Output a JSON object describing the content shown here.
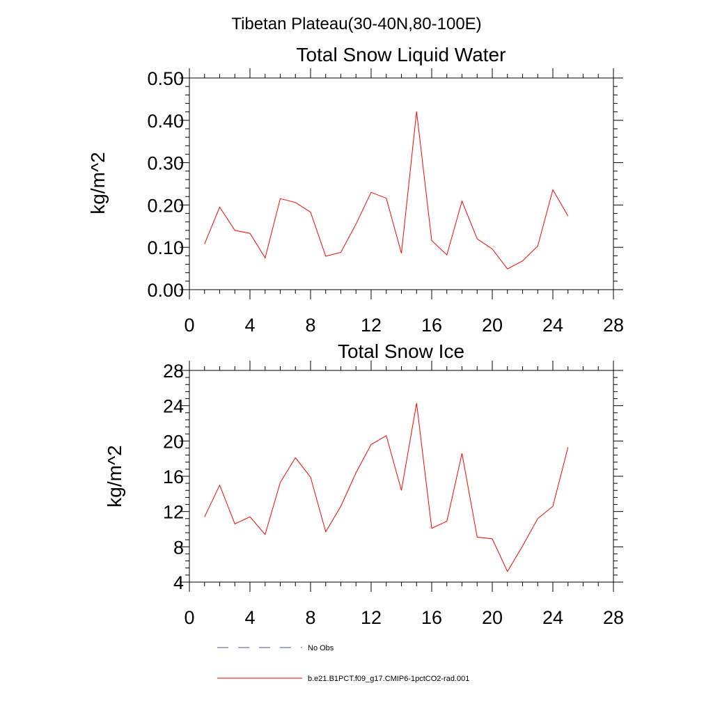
{
  "figure": {
    "main_title": "Tibetan Plateau(30-40N,80-100E)"
  },
  "colors": {
    "series": "#ff0000",
    "obs": "#4a5a8a",
    "axis": "#000000"
  },
  "legend": {
    "items": [
      {
        "label": "No Obs",
        "style": "dashed",
        "color": "#4a5a8a"
      },
      {
        "label": "b.e21.B1PCT.f09_g17.CMIP6-1pctCO2-rad.001",
        "style": "solid",
        "color": "#ff0000"
      }
    ]
  },
  "chart_data": [
    {
      "type": "line",
      "title": "Total Snow Liquid Water",
      "xlabel": "",
      "ylabel": "kg/m^2",
      "xlim": [
        0,
        28
      ],
      "ylim": [
        0,
        0.5
      ],
      "x_ticks": [
        "0",
        "4",
        "8",
        "12",
        "16",
        "20",
        "24",
        "28"
      ],
      "y_ticks": [
        "0.00",
        "0.10",
        "0.20",
        "0.30",
        "0.40",
        "0.50"
      ],
      "grid": false,
      "series": [
        {
          "name": "b.e21.B1PCT.f09_g17.CMIP6-1pctCO2-rad.001",
          "color": "#ff0000",
          "x": [
            1,
            2,
            3,
            4,
            5,
            6,
            7,
            8,
            9,
            10,
            11,
            12,
            13,
            14,
            15,
            16,
            17,
            18,
            19,
            20,
            21,
            22,
            23,
            24,
            25
          ],
          "values": [
            0.108,
            0.195,
            0.14,
            0.133,
            0.075,
            0.215,
            0.206,
            0.183,
            0.079,
            0.088,
            0.155,
            0.23,
            0.216,
            0.086,
            0.421,
            0.116,
            0.082,
            0.209,
            0.12,
            0.096,
            0.049,
            0.068,
            0.103,
            0.236,
            0.174
          ]
        }
      ]
    },
    {
      "type": "line",
      "title": "Total Snow Ice",
      "xlabel": "",
      "ylabel": "kg/m^2",
      "xlim": [
        0,
        28
      ],
      "ylim": [
        4,
        28
      ],
      "x_ticks": [
        "0",
        "4",
        "8",
        "12",
        "16",
        "20",
        "24",
        "28"
      ],
      "y_ticks": [
        "4",
        "8",
        "12",
        "16",
        "20",
        "24",
        "28"
      ],
      "grid": false,
      "series": [
        {
          "name": "b.e21.B1PCT.f09_g17.CMIP6-1pctCO2-rad.001",
          "color": "#ff0000",
          "x": [
            1,
            2,
            3,
            4,
            5,
            6,
            7,
            8,
            9,
            10,
            11,
            12,
            13,
            14,
            15,
            16,
            17,
            18,
            19,
            20,
            21,
            22,
            23,
            24,
            25
          ],
          "values": [
            11.4,
            15.0,
            10.6,
            11.4,
            9.4,
            15.3,
            18.1,
            15.9,
            9.7,
            12.6,
            16.4,
            19.6,
            20.6,
            14.4,
            24.3,
            10.1,
            10.9,
            18.6,
            9.1,
            8.9,
            5.2,
            8.1,
            11.2,
            12.6,
            19.3
          ]
        }
      ]
    }
  ]
}
